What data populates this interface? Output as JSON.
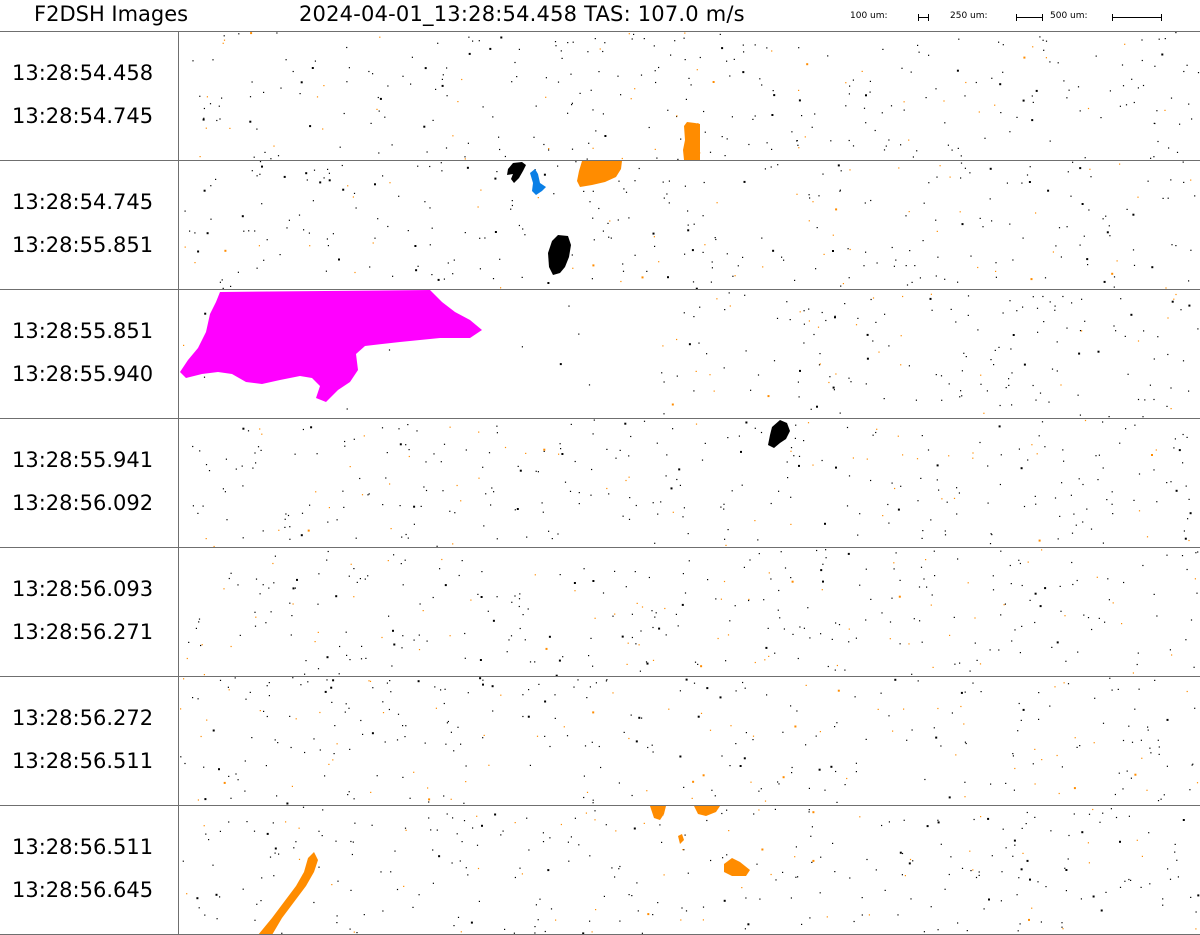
{
  "header": {
    "title": "F2DSH Images",
    "timestamp_label": "2024-04-01_13:28:54.458  TAS: 107.0 m/s"
  },
  "scale_legend": [
    {
      "label": "100 um:"
    },
    {
      "label": "250 um:"
    },
    {
      "label": "500 um:"
    }
  ],
  "strips": [
    {
      "start": "13:28:54.458",
      "end": "13:28:54.745"
    },
    {
      "start": "13:28:54.745",
      "end": "13:28:55.851"
    },
    {
      "start": "13:28:55.851",
      "end": "13:28:55.940"
    },
    {
      "start": "13:28:55.941",
      "end": "13:28:56.092"
    },
    {
      "start": "13:28:56.093",
      "end": "13:28:56.271"
    },
    {
      "start": "13:28:56.272",
      "end": "13:28:56.511"
    },
    {
      "start": "13:28:56.511",
      "end": "13:28:56.645"
    }
  ],
  "colors": {
    "orange": "#ff8c00",
    "black": "#000000",
    "blue": "#0a7fe6",
    "magenta": "#ff00ff",
    "divider": "#6f6f6f"
  }
}
